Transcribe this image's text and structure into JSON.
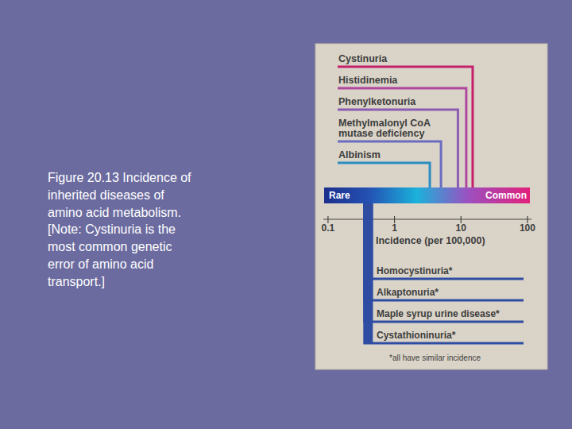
{
  "caption": "Figure 20.13 Incidence of inherited diseases of amino acid metabolism. [Note: Cystinuria is the most common genetic error of amino acid transport.]",
  "chart_data": {
    "type": "lollipop",
    "xlabel": "Incidence (per 100,000)",
    "scale_labels": [
      "Rare",
      "Common"
    ],
    "annotation": "*all have similar incidence",
    "log": "x",
    "tick_labels": "x",
    "xlim": [
      0.085,
      115
    ],
    "xticks": [
      0.1,
      1,
      10,
      100
    ],
    "series": [
      {
        "categories": [
          "Cystinuria",
          "Histidinemia",
          "Phenylketonuria",
          "Methylmalonyl CoA mutase deficiency",
          "Albinism"
        ],
        "values": [
          15,
          12,
          9,
          5,
          3.4
        ],
        "colors": [
          "#c4206c",
          "#b0479e",
          "#8c5cb2",
          "#6a6cc0",
          "#2a8cc2"
        ]
      },
      {
        "categories": [
          "Homocystinuria*",
          "Alkaptonuria*",
          "Maple syrup urine disease*",
          "Cystathioninuria*"
        ],
        "values": [
          0.4,
          0.4,
          0.4,
          0.4
        ],
        "color": "#2e4ca2"
      }
    ]
  }
}
